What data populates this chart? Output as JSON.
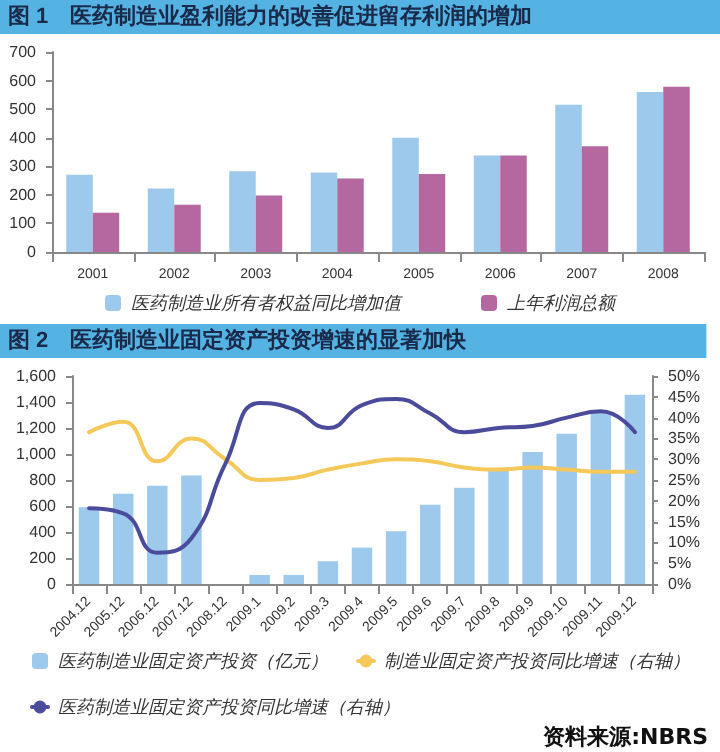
{
  "chart_data": [
    {
      "type": "bar",
      "title": "图 1　医药制造业盈利能力的改善促进留存利润的增加",
      "categories": [
        "2001",
        "2002",
        "2003",
        "2004",
        "2005",
        "2006",
        "2007",
        "2008"
      ],
      "series": [
        {
          "name": "医药制造业所有者权益同比增加值",
          "color": "#9dc9ec",
          "values": [
            270,
            222,
            283,
            278,
            400,
            338,
            515,
            560
          ]
        },
        {
          "name": "上年利润总额",
          "color": "#b4689f",
          "values": [
            137,
            165,
            198,
            257,
            273,
            338,
            370,
            578
          ]
        }
      ],
      "ylim": [
        0,
        700
      ],
      "yticks": [
        0,
        100,
        200,
        300,
        400,
        500,
        600,
        700
      ],
      "grid": false,
      "legend": "bottom"
    },
    {
      "type": "bar",
      "title": "图 2　医药制造业固定资产投资增速的显著加快",
      "categories": [
        "2004.12",
        "2005.12",
        "2006.12",
        "2007.12",
        "2008.12",
        "2009.1",
        "2009.2",
        "2009.3",
        "2009.4",
        "2009.5",
        "2009.6",
        "2009.7",
        "2009.8",
        "2009.9",
        "2009.10",
        "2009.11",
        "2009.12"
      ],
      "series": [
        {
          "name": "医药制造业固定资产投资（亿元）",
          "color": "#9dc9ec",
          "values": [
            590,
            695,
            755,
            835,
            null,
            70,
            70,
            175,
            280,
            405,
            610,
            740,
            870,
            1015,
            1155,
            1320,
            1455
          ]
        },
        {
          "name": "制造业固定资产投资同比增速（右轴）",
          "type": "line",
          "axis": "y2",
          "color": "#f5c85a",
          "values": [
            36.5,
            39,
            29.5,
            35,
            30,
            25,
            25.5,
            27.5,
            29,
            30,
            29.5,
            28,
            27.5,
            28,
            27.5,
            27,
            27
          ]
        },
        {
          "name": "医药制造业固定资产投资同比增速（右轴）",
          "type": "line",
          "axis": "y2",
          "color": "#4b4b9c",
          "values": [
            18.2,
            17,
            7.5,
            11,
            29,
            43.5,
            42,
            37.5,
            43,
            44.5,
            41,
            36.5,
            37.5,
            38,
            40,
            41.5,
            36.5
          ]
        }
      ],
      "ylim": [
        0,
        1600
      ],
      "yticks": [
        0,
        200,
        400,
        600,
        800,
        {
          "value": 1000,
          "label": "1,000"
        },
        {
          "value": 1200,
          "label": "1,200"
        },
        {
          "value": 1400,
          "label": "1,400"
        },
        {
          "value": 1600,
          "label": "1,600"
        }
      ],
      "y2lim": [
        0,
        50
      ],
      "y2ticks": [
        {
          "value": 0,
          "label": "0%"
        },
        {
          "value": 5,
          "label": "5%"
        },
        {
          "value": 10,
          "label": "10%"
        },
        {
          "value": 15,
          "label": "15%"
        },
        {
          "value": 20,
          "label": "20%"
        },
        {
          "value": 25,
          "label": "25%"
        },
        {
          "value": 30,
          "label": "30%"
        },
        {
          "value": 35,
          "label": "35%"
        },
        {
          "value": 40,
          "label": "40%"
        },
        {
          "value": 45,
          "label": "45%"
        },
        {
          "value": 50,
          "label": "50%"
        }
      ],
      "grid": false,
      "legend": "bottom",
      "line_style": "solid",
      "annotations": [
        "资料来源:NBRS"
      ]
    }
  ]
}
